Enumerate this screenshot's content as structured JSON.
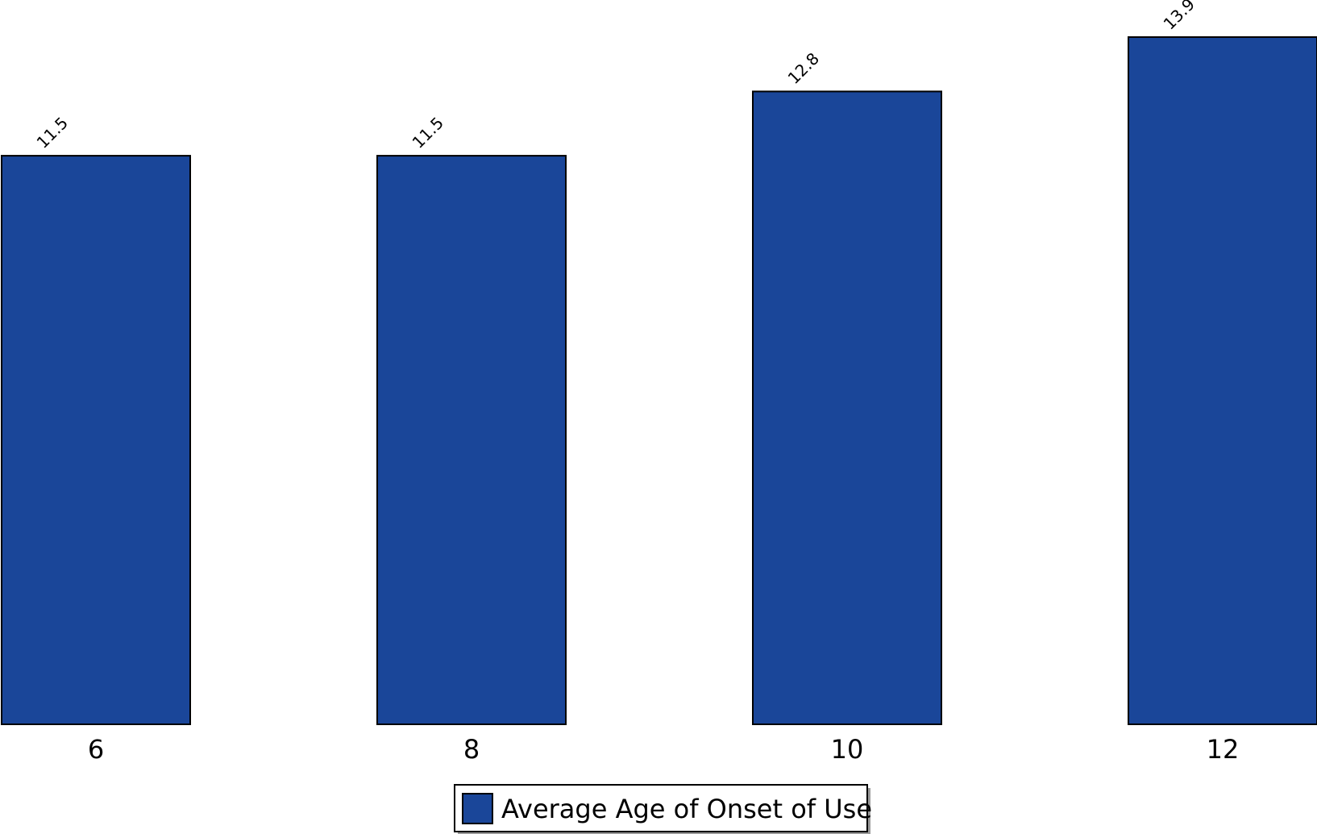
{
  "chart_data": {
    "type": "bar",
    "categories": [
      "6",
      "8",
      "10",
      "12"
    ],
    "series": [
      {
        "name": "Average Age of Onset of Use",
        "values": [
          11.5,
          11.5,
          12.8,
          13.9
        ],
        "labels": [
          "11.5",
          "11.5",
          "12.8",
          "13.9"
        ],
        "color": "#1a4699"
      }
    ],
    "title": "",
    "xlabel": "",
    "ylabel": "",
    "ylim": [
      0,
      14.65
    ],
    "grid": false,
    "legend_position": "bottom-center"
  },
  "colors": {
    "bar_fill": "#1a4699",
    "bar_stroke": "#000000",
    "background": "#ffffff"
  }
}
